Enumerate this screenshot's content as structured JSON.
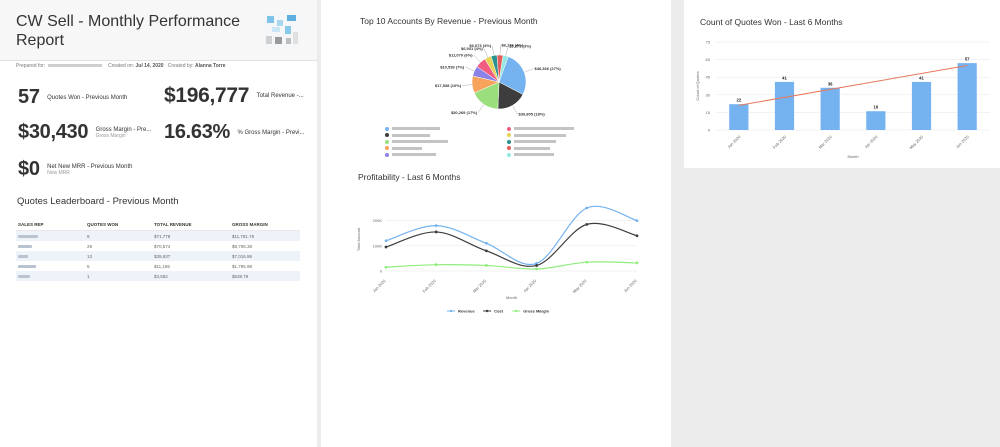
{
  "report": {
    "title": "CW Sell - Monthly Performance Report",
    "prepared_for_label": "Prepared for:",
    "created_on_label": "Created on:",
    "created_on": "Jul 14, 2020",
    "created_by_label": "Created by:",
    "created_by": "Alanna Torre"
  },
  "kpis": {
    "quotes_won": {
      "value": "57",
      "label": "Quotes Won - Previous Month"
    },
    "total_revenue": {
      "value": "$196,777",
      "label": "Total Revenue -..."
    },
    "gross_margin": {
      "value": "$30,430",
      "label": "Gross Margin - Pre...",
      "sub": "Gross Margin"
    },
    "gross_margin_pct": {
      "value": "16.63%",
      "label": "% Gross Margin - Previ..."
    },
    "mrr": {
      "value": "$0",
      "label": "Net New MRR - Previous Month",
      "sub": "New MRR"
    }
  },
  "leaderboard": {
    "title": "Quotes Leaderboard - Previous Month",
    "columns": [
      "SALES REP",
      "QUOTES WON",
      "TOTAL REVENUE",
      "GROSS MARGIN"
    ],
    "rows": [
      {
        "won": "9",
        "revenue": "$71,778",
        "margin": "$11,781.76"
      },
      {
        "won": "29",
        "revenue": "$70,574",
        "margin": "$8,706.38"
      },
      {
        "won": "13",
        "revenue": "$39,937",
        "margin": "$7,016.96"
      },
      {
        "won": "5",
        "revenue": "$11,165",
        "margin": "$1,785.98"
      },
      {
        "won": "1",
        "revenue": "$3,582",
        "margin": "$638.79"
      }
    ]
  },
  "pie_chart": {
    "title": "Top 10 Accounts By Revenue - Previous Month",
    "colors": [
      "#74b2f0",
      "#3d3d3d",
      "#9bde7e",
      "#f7a35c",
      "#8a82e6",
      "#f15c80",
      "#e4d354",
      "#2b908f",
      "#e35b5b",
      "#91e8e1"
    ],
    "chart_data": {
      "type": "pie",
      "values": [
        46366,
        30805,
        30269,
        17538,
        10539,
        11070,
        6931,
        6073,
        6176,
        5373
      ],
      "labels": [
        "$46,366 (27%)",
        "$30,805 (18%)",
        "$30,269 (17%)",
        "$17,538 (10%)",
        "$10,539 (7%)",
        "$11,070 (6%)",
        "$6,931 (4%)",
        "$6,073 (4%)",
        "$6,176 (4%)",
        "$5,373 (3%)"
      ]
    }
  },
  "profit_chart": {
    "title": "Profitability - Last 6 Months",
    "chart_data": {
      "type": "line",
      "categories": [
        "Jan 2020",
        "Feb 2020",
        "Mar 2020",
        "Apr 2020",
        "May 2020",
        "Jun 2020"
      ],
      "ylabel": "Total Amount",
      "xlabel": "Month",
      "ylim": [
        0,
        250000
      ],
      "yticks": [
        "0",
        "100K",
        "200K"
      ],
      "series": [
        {
          "name": "Revenue",
          "color": "#74b2f0",
          "values": [
            120000,
            180000,
            110000,
            30000,
            250000,
            200000
          ]
        },
        {
          "name": "Cost",
          "color": "#3d3d3d",
          "values": [
            95000,
            155000,
            80000,
            22000,
            185000,
            140000
          ]
        },
        {
          "name": "Gross Margin",
          "color": "#90ed7d",
          "values": [
            15000,
            25000,
            22000,
            8000,
            35000,
            32000
          ]
        }
      ]
    }
  },
  "quotes_chart": {
    "title": "Count of Quotes Won - Last 6 Months",
    "chart_data": {
      "type": "bar",
      "categories": [
        "Jan 2020",
        "Feb 2020",
        "Mar 2020",
        "Apr 2020",
        "May 2020",
        "Jun 2020"
      ],
      "values": [
        22,
        41,
        36,
        16,
        41,
        57
      ],
      "data_labels": [
        "22",
        "41",
        "36",
        "16",
        "41",
        "57"
      ],
      "ylabel": "Count of Quotes",
      "xlabel": "Month",
      "ylim": [
        0,
        75
      ],
      "yticks": [
        "0",
        "15",
        "30",
        "45",
        "60",
        "75"
      ],
      "bar_color": "#74b2f0",
      "trend_color": "#e8785a",
      "trend": [
        21,
        55
      ]
    }
  }
}
